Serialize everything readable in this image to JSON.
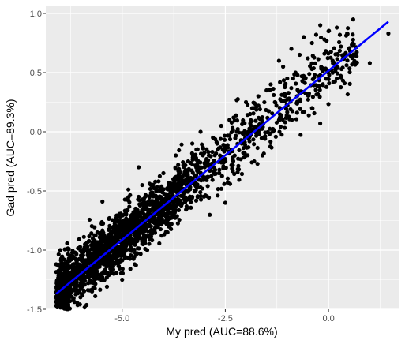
{
  "chart_data": {
    "type": "scatter",
    "xlabel": "My pred (AUC=88.6%)",
    "ylabel": "Gad pred (AUC=89.3%)",
    "xlim": [
      -6.85,
      1.7
    ],
    "ylim": [
      -1.5,
      1.06
    ],
    "x_ticks": [
      -5.0,
      -2.5,
      0.0
    ],
    "x_tick_labels": [
      "-5.0",
      "-2.5",
      "0.0"
    ],
    "y_ticks": [
      -1.5,
      -1.0,
      -0.5,
      0.0,
      0.5,
      1.0
    ],
    "y_tick_labels": [
      "-1.5",
      "-1.0",
      "-0.5",
      "0.0",
      "0.5",
      "1.0"
    ],
    "grid": true,
    "panel_background": "#ebebeb",
    "point_color": "#000000",
    "fit_line_color": "#0000ff",
    "fit_line": {
      "x": [
        -6.6,
        1.45
      ],
      "y": [
        -1.37,
        0.93
      ]
    },
    "point_cloud": {
      "approx_count": 2000,
      "x_range": [
        -6.6,
        1.5
      ],
      "trend": {
        "slope": 0.286,
        "intercept": 0.52
      },
      "residual_sd": 0.12
    },
    "series": [
      {
        "x": [
          -6.6,
          -6.5,
          -6.4,
          -6.3,
          -6.25,
          -6.2,
          -6.1,
          -6.0,
          -5.9,
          -5.8,
          -5.7,
          -5.6,
          -5.5,
          -5.4,
          -5.3,
          -5.2,
          -5.1,
          -5.0,
          -4.9,
          -4.8,
          -4.7,
          -4.6,
          -4.5,
          -4.4,
          -4.3,
          -4.2,
          -4.1,
          -4.0,
          -3.9,
          -3.8,
          -3.7,
          -3.6,
          -3.5,
          -3.4,
          -3.3,
          -3.2,
          -3.1,
          -3.0,
          -2.9,
          -2.8,
          -2.7,
          -2.6,
          -2.5,
          -2.4,
          -2.3,
          -2.2,
          -2.1,
          -2.0,
          -1.9,
          -1.8,
          -1.7,
          -1.6,
          -1.5,
          -1.4,
          -1.3,
          -1.2,
          -1.1,
          -1.0,
          -0.9,
          -0.8,
          -0.7,
          -0.6,
          -0.5,
          -0.4,
          -0.3,
          -0.2,
          -0.1,
          0.0,
          0.1,
          0.2,
          0.3,
          0.5,
          1.0,
          1.45,
          -6.5,
          -5.2,
          -4.6,
          -3.9,
          -3.3,
          -2.5,
          -1.8,
          -1.2,
          -0.4,
          0.2
        ],
        "y": [
          -1.12,
          -1.13,
          -1.3,
          -1.35,
          -1.05,
          -1.2,
          -1.1,
          -1.25,
          -0.95,
          -1.0,
          -1.15,
          -0.85,
          -0.9,
          -0.98,
          -1.0,
          -0.8,
          -0.92,
          -1.25,
          -0.7,
          -0.75,
          -0.82,
          -0.55,
          -0.9,
          -0.6,
          -0.45,
          -0.65,
          -0.55,
          -0.35,
          -0.72,
          -0.5,
          -0.2,
          -0.35,
          -0.55,
          -0.25,
          -0.1,
          -0.15,
          0.0,
          -0.3,
          -0.2,
          -0.05,
          -0.1,
          0.05,
          -0.15,
          0.1,
          0.12,
          0.0,
          -0.1,
          0.25,
          0.15,
          0.2,
          0.3,
          -0.2,
          0.35,
          0.4,
          0.25,
          0.6,
          0.55,
          0.45,
          0.7,
          0.5,
          0.65,
          0.8,
          0.62,
          0.75,
          0.82,
          0.9,
          0.78,
          0.85,
          0.6,
          0.88,
          0.72,
          0.7,
          0.58,
          0.83,
          -1.0,
          -1.2,
          -0.3,
          -0.85,
          -0.55,
          -0.6,
          -0.25,
          0.1,
          0.2,
          0.45
        ]
      }
    ]
  }
}
